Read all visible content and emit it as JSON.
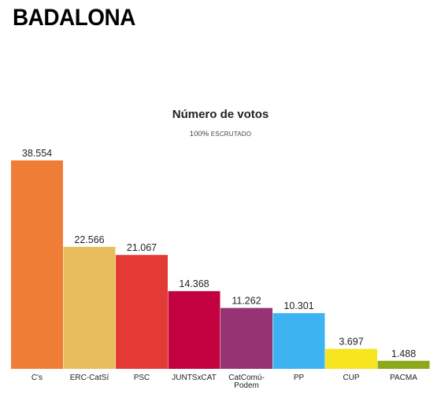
{
  "page": {
    "title": "BADALONA"
  },
  "chart_data": {
    "type": "bar",
    "title": "Número de votos",
    "subtitle_value": "100%",
    "subtitle_text": "ESCRUTADO",
    "categories": [
      "C's",
      "ERC-CatSí",
      "PSC",
      "JUNTSxCAT",
      "CatComú-Podem",
      "PP",
      "CUP",
      "PACMA"
    ],
    "category_lines": [
      [
        "C's"
      ],
      [
        "ERC-CatSí"
      ],
      [
        "PSC"
      ],
      [
        "JUNTSxCAT"
      ],
      [
        "CatComú-",
        "Podem"
      ],
      [
        "PP"
      ],
      [
        "CUP"
      ],
      [
        "PACMA"
      ]
    ],
    "values": [
      38554,
      22566,
      21067,
      14368,
      11262,
      10301,
      3697,
      1488
    ],
    "value_labels": [
      "38.554",
      "22.566",
      "21.067",
      "14.368",
      "11.262",
      "10.301",
      "3.697",
      "1.488"
    ],
    "colors": [
      "#EF7D35",
      "#E8BE5C",
      "#E43A36",
      "#C2023F",
      "#953373",
      "#3DB4F1",
      "#F7E520",
      "#8DA81B"
    ],
    "xlabel": "",
    "ylabel": "",
    "ylim": [
      0,
      38554
    ],
    "grid": false,
    "legend": "none"
  }
}
